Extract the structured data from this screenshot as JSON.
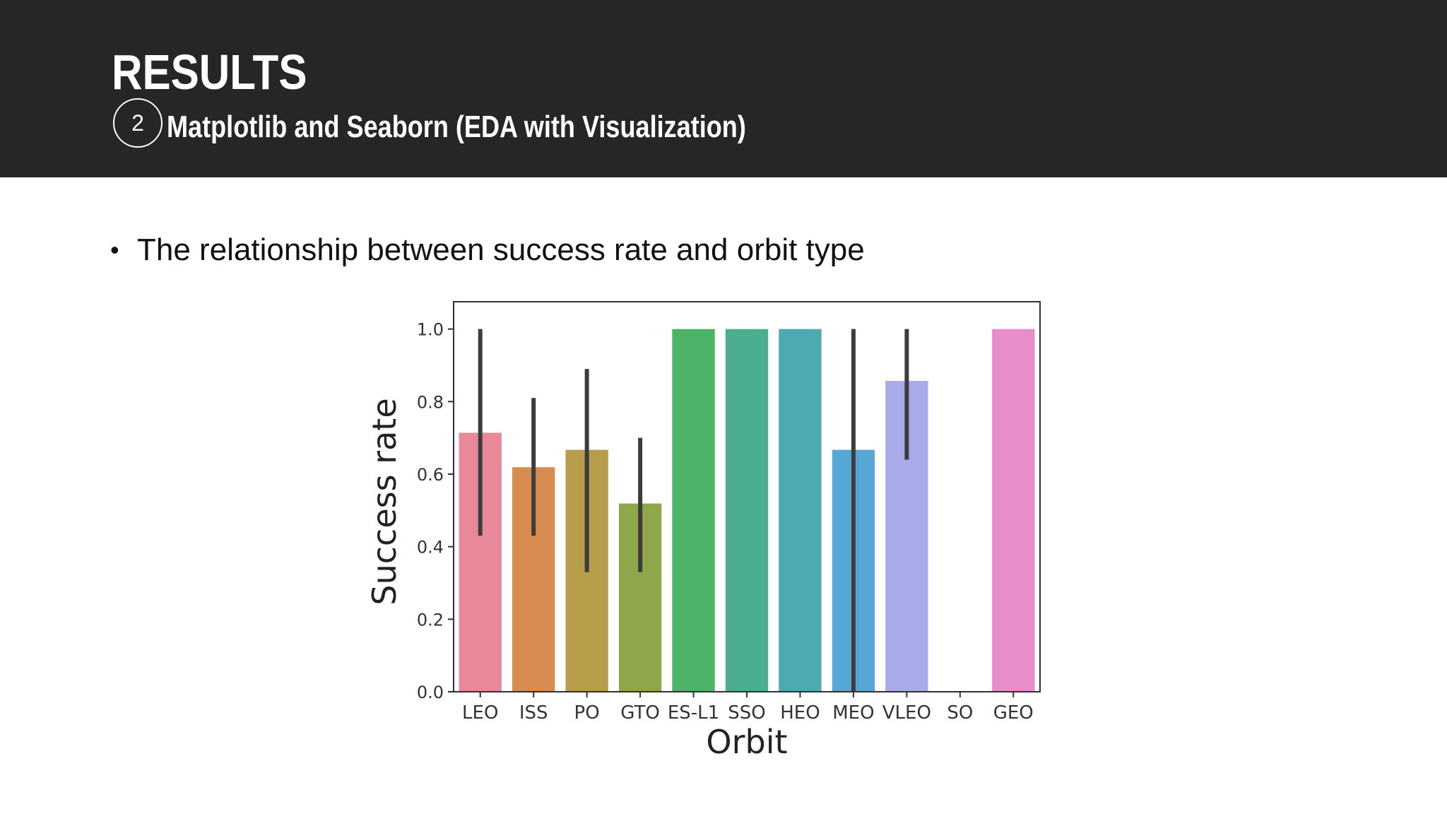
{
  "slide": {
    "title": "RESULTS",
    "step_number": "2",
    "subtitle": "Matplotlib and Seaborn (EDA with Visualization)",
    "bullet": "The relationship between success rate and orbit type",
    "header_color": "#262626"
  },
  "chart_data": {
    "type": "bar",
    "xlabel": "Orbit",
    "ylabel": "Success rate",
    "ylim": [
      0,
      1.05
    ],
    "yticks": [
      "0.0",
      "0.2",
      "0.4",
      "0.6",
      "0.8",
      "1.0"
    ],
    "categories": [
      "LEO",
      "ISS",
      "PO",
      "GTO",
      "ES-L1",
      "SSO",
      "HEO",
      "MEO",
      "VLEO",
      "SO",
      "GEO"
    ],
    "values": [
      0.714,
      0.619,
      0.667,
      0.519,
      1.0,
      1.0,
      1.0,
      0.667,
      0.857,
      0.0,
      1.0
    ],
    "error_low": [
      0.43,
      0.43,
      0.33,
      0.33,
      null,
      null,
      null,
      0.0,
      0.64,
      null,
      null
    ],
    "error_high": [
      1.0,
      0.81,
      0.89,
      0.7,
      null,
      null,
      null,
      1.0,
      1.0,
      null,
      null
    ],
    "colors": [
      "#e8899a",
      "#d98c4f",
      "#b59d4a",
      "#8fa64a",
      "#4db368",
      "#4aad90",
      "#4daab0",
      "#55a8d6",
      "#a9aaea",
      "#d29be6",
      "#e88dca"
    ],
    "grid": false,
    "legend": false
  }
}
